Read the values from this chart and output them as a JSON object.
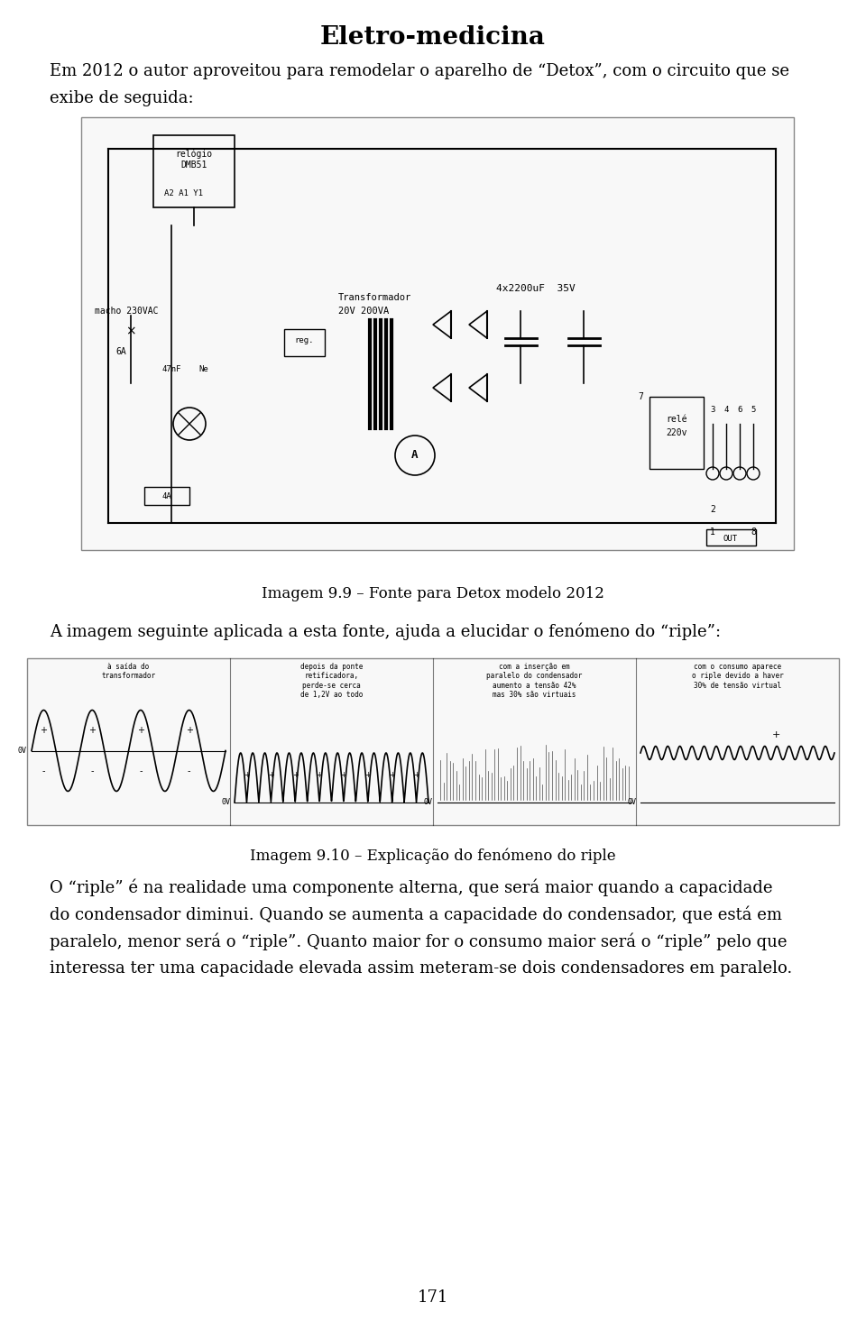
{
  "title": "Eletro-medicina",
  "page_number": "171",
  "background_color": "#ffffff",
  "text_color": "#000000",
  "title_fontsize": 20,
  "body_fontsize": 13,
  "caption_fontsize": 12,
  "paragraph1": "Em 2012 o autor aproveitou para remodelar o aparelho de “Detox”, com o circuito que se\nexibe de seguida:",
  "caption1": "Imagem 9.9 – Fonte para Detox modelo 2012",
  "paragraph2": "A imagem seguinte aplicada a esta fonte, ajuda a elucidar o fenómeno do “riple”:",
  "caption2": "Imagem 9.10 – Explicação do fenómeno do riple",
  "paragraph3_line1": "O “riple” é na realidade uma componente alterna, que será maior quando a capacidade",
  "paragraph3_line2": "do condensador diminui. Quando se aumenta a capacidade do condensador, que está em",
  "paragraph3_line3": "paralelo, menor será o “riple”. Quanto maior for o consumo maior será o “riple” pelo que",
  "paragraph3_line4": "interessa ter uma capacidade elevada assim meteram-se dois condensadores em paralelo."
}
